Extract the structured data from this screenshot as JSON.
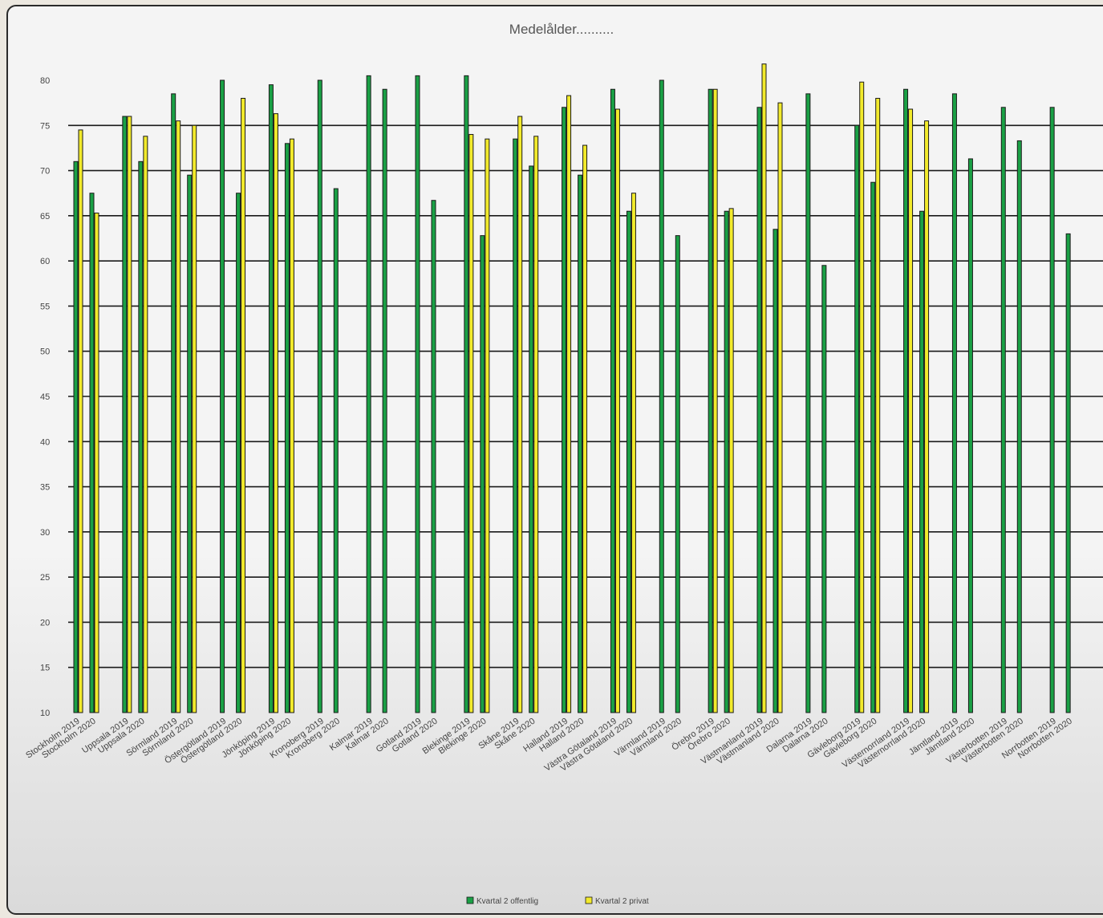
{
  "chart_data": {
    "type": "bar",
    "title": "Medelålder..........",
    "xlabel": "",
    "ylabel": "",
    "ylim": [
      10,
      80
    ],
    "yticks": [
      10,
      15,
      20,
      25,
      30,
      35,
      40,
      45,
      50,
      55,
      60,
      65,
      70,
      75,
      80
    ],
    "grid": true,
    "legend_position": "bottom",
    "categories": [
      "Stockholm 2019",
      "Stockholm 2020",
      "Uppsala 2019",
      "Uppsala 2020",
      "Sörmland 2019",
      "Sörmland 2020",
      "Östergötland 2019",
      "Östergötland 2020",
      "Jönköping 2019",
      "Jönköping 2020",
      "Kronoberg 2019",
      "Kronoberg 2020",
      "Kalmar 2019",
      "Kalmar 2020",
      "Gotland 2019",
      "Gotland 2020",
      "Blekinge 2019",
      "Blekinge 2020",
      "Skåne 2019",
      "Skåne 2020",
      "Halland 2019",
      "Halland 2020",
      "Västra Götaland 2019",
      "Västra Götaland 2020",
      "Värmland 2019",
      "Värmland 2020",
      "Örebro 2019",
      "Örebro 2020",
      "Västmanland 2019",
      "Västmanland 2020",
      "Dalarna 2019",
      "Dalarna 2020",
      "Gävleborg 2019",
      "Gävleborg 2020",
      "Västernorrland 2019",
      "Västernorrland 2020",
      "Jämtland 2019",
      "Jämtland 2020",
      "Västerbotten 2019",
      "Västerbotten 2020",
      "Norrbotten 2019",
      "Norrbotten 2020"
    ],
    "series": [
      {
        "name": "Kvartal 2 offentlig",
        "color": "#1aa045",
        "values": [
          71,
          67.5,
          76,
          71,
          78.5,
          69.5,
          80,
          67.5,
          79.5,
          73,
          80,
          68,
          80.5,
          79,
          80.5,
          66.7,
          80.5,
          62.8,
          73.5,
          70.5,
          77,
          69.5,
          79,
          65.5,
          80,
          62.8,
          79,
          65.5,
          77,
          63.5,
          78.5,
          59.5,
          75,
          68.7,
          79,
          65.5,
          78.5,
          71.3,
          77,
          73.3,
          77,
          63
        ]
      },
      {
        "name": "Kvartal 2 privat",
        "color": "#f2ea2c",
        "values": [
          74.5,
          65.3,
          76,
          73.8,
          75.5,
          75,
          null,
          78,
          76.3,
          73.5,
          null,
          null,
          null,
          null,
          null,
          null,
          74,
          73.5,
          76,
          73.8,
          78.3,
          72.8,
          76.8,
          67.5,
          null,
          null,
          79,
          65.8,
          81.8,
          77.5,
          null,
          null,
          79.8,
          78,
          76.8,
          75.5,
          null,
          null,
          null,
          null,
          null,
          null
        ]
      }
    ]
  }
}
